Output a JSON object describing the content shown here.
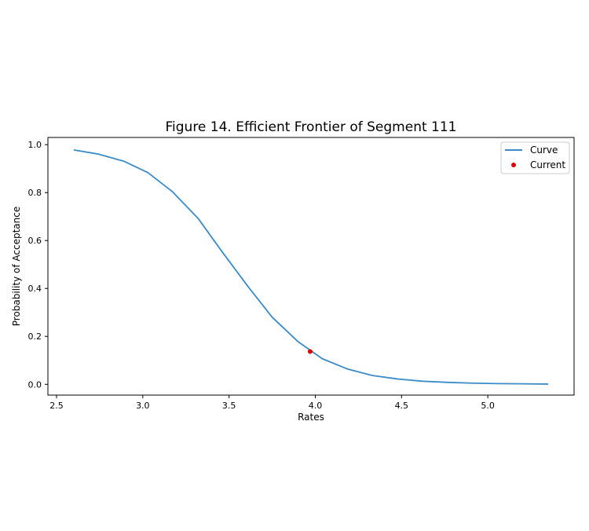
{
  "chart_data": {
    "type": "line",
    "title": "Figure 14. Efficient Frontier of Segment 111",
    "xlabel": "Rates",
    "ylabel": "Probability of Acceptance",
    "xlim": [
      2.45,
      5.5
    ],
    "ylim": [
      -0.045,
      1.03
    ],
    "xticks": [
      2.5,
      3.0,
      3.5,
      4.0,
      4.5,
      5.0
    ],
    "xtick_labels": [
      "2.5",
      "3.0",
      "3.5",
      "4.0",
      "4.5",
      "5.0"
    ],
    "yticks": [
      0.0,
      0.2,
      0.4,
      0.6,
      0.8,
      1.0
    ],
    "ytick_labels": [
      "0.0",
      "0.2",
      "0.4",
      "0.6",
      "0.8",
      "1.0"
    ],
    "grid": false,
    "legend_position": "top-right",
    "series": [
      {
        "name": "Curve",
        "kind": "line",
        "color": "#3a8bc8",
        "x": [
          2.6,
          2.74,
          2.89,
          3.03,
          3.17,
          3.32,
          3.46,
          3.61,
          3.75,
          3.9,
          4.04,
          4.19,
          4.33,
          4.48,
          4.62,
          4.77,
          4.91,
          5.06,
          5.2,
          5.35
        ],
        "y": [
          0.978,
          0.961,
          0.931,
          0.883,
          0.805,
          0.693,
          0.553,
          0.408,
          0.28,
          0.178,
          0.107,
          0.063,
          0.037,
          0.022,
          0.013,
          0.008,
          0.005,
          0.003,
          0.002,
          0.001
        ]
      },
      {
        "name": "Current",
        "kind": "scatter",
        "color": "#e00000",
        "x": [
          3.97
        ],
        "y": [
          0.137
        ]
      }
    ]
  }
}
